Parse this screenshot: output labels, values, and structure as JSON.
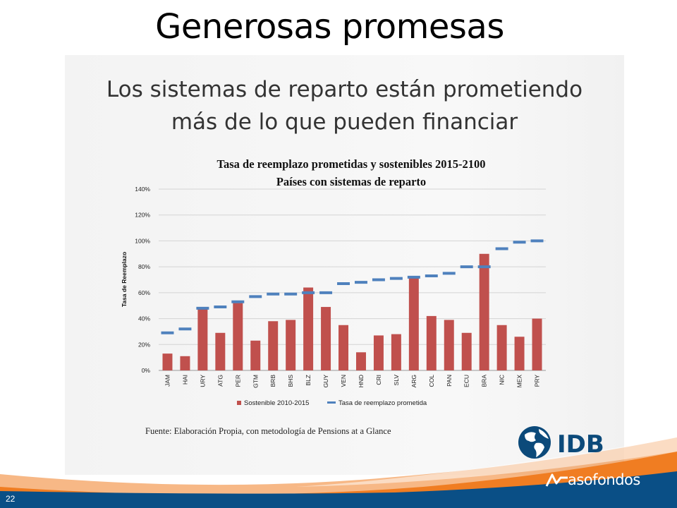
{
  "slide": {
    "title": "Generosas promesas",
    "subtitle_line1": "Los sistemas de reparto están prometiendo",
    "subtitle_line2": "más de lo que pueden financiar",
    "source": "Fuente: Elaboración Propia, con metodología de Pensions at a Glance",
    "slide_number": "22",
    "logo_idb": "IDB",
    "logo_asofondos": "asofondos"
  },
  "colors": {
    "bar": "#c0504d",
    "dash": "#4f81bd",
    "footer_blue": "#0a4f86",
    "footer_orange": "#f07d22",
    "idb_blue": "#0c4a7a"
  },
  "chart_data": {
    "type": "bar",
    "title": "Tasa de reemplazo prometidas y sostenibles 2015-2100",
    "subtitle": "Países con sistemas de reparto",
    "ylabel": "Tasa de Reemplazo",
    "xlabel": "",
    "ylim": [
      0,
      140
    ],
    "yticks": [
      "0%",
      "20%",
      "40%",
      "60%",
      "80%",
      "100%",
      "120%",
      "140%"
    ],
    "grid": true,
    "legend_position": "bottom",
    "categories": [
      "JAM",
      "HAI",
      "URY",
      "ATG",
      "PER",
      "GTM",
      "BRB",
      "BHS",
      "BLZ",
      "GUY",
      "VEN",
      "HND",
      "CRI",
      "SLV",
      "ARG",
      "COL",
      "PAN",
      "ECU",
      "BRA",
      "NIC",
      "MEX",
      "PRY"
    ],
    "series": [
      {
        "name": "Sostenible 2010-2015",
        "type": "bar",
        "values": [
          13,
          11,
          48,
          29,
          52,
          23,
          38,
          39,
          64,
          49,
          35,
          14,
          27,
          28,
          72,
          42,
          39,
          29,
          90,
          35,
          26,
          40
        ]
      },
      {
        "name": "Tasa de reemplazo prometida",
        "type": "dash",
        "values": [
          29,
          32,
          48,
          49,
          53,
          57,
          59,
          59,
          60,
          60,
          67,
          68,
          70,
          71,
          72,
          73,
          75,
          80,
          80,
          94,
          99,
          100
        ]
      }
    ]
  }
}
